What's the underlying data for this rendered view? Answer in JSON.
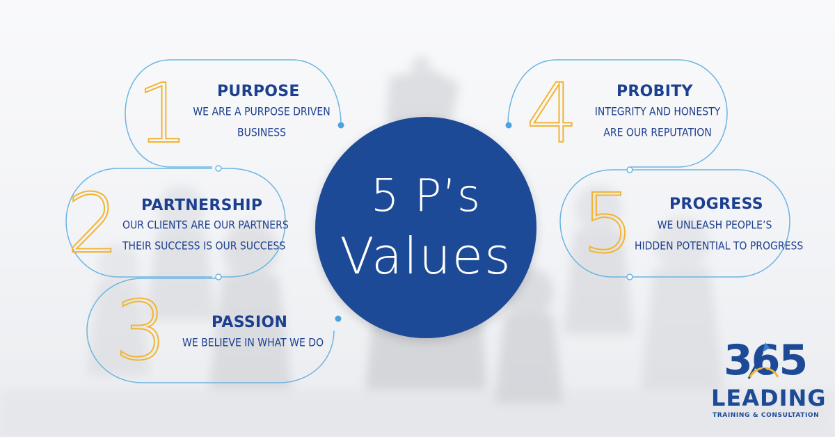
{
  "center": {
    "line1": "5 P’s",
    "line2": "Values"
  },
  "values": [
    {
      "number": "1",
      "title": "PURPOSE",
      "lines": [
        "WE ARE A PURPOSE DRIVEN",
        "BUSINESS"
      ]
    },
    {
      "number": "2",
      "title": "PARTNERSHIP",
      "lines": [
        "OUR CLIENTS ARE OUR PARTNERS",
        "THEIR SUCCESS IS OUR SUCCESS"
      ]
    },
    {
      "number": "3",
      "title": "PASSION",
      "lines": [
        "WE BELIEVE IN WHAT WE DO"
      ]
    },
    {
      "number": "4",
      "title": "PROBITY",
      "lines": [
        "INTEGRITY AND HONESTY",
        "ARE OUR REPUTATION"
      ]
    },
    {
      "number": "5",
      "title": "PROGRESS",
      "lines": [
        "WE UNLEASH PEOPLE’S",
        "HIDDEN POTENTIAL TO PROGRESS"
      ]
    }
  ],
  "logo": {
    "digits": "365",
    "word": "LEADING",
    "tagline": "TRAINING & CONSULTATION"
  },
  "colors": {
    "brand_blue": "#1d4a96",
    "text_blue": "#1c3f8f",
    "accent_gold": "#f2b431",
    "outline_blue": "#6cb4e0"
  },
  "icons": [
    "chess-pieces-background-image",
    "logo-arrow-gauge-icon"
  ]
}
